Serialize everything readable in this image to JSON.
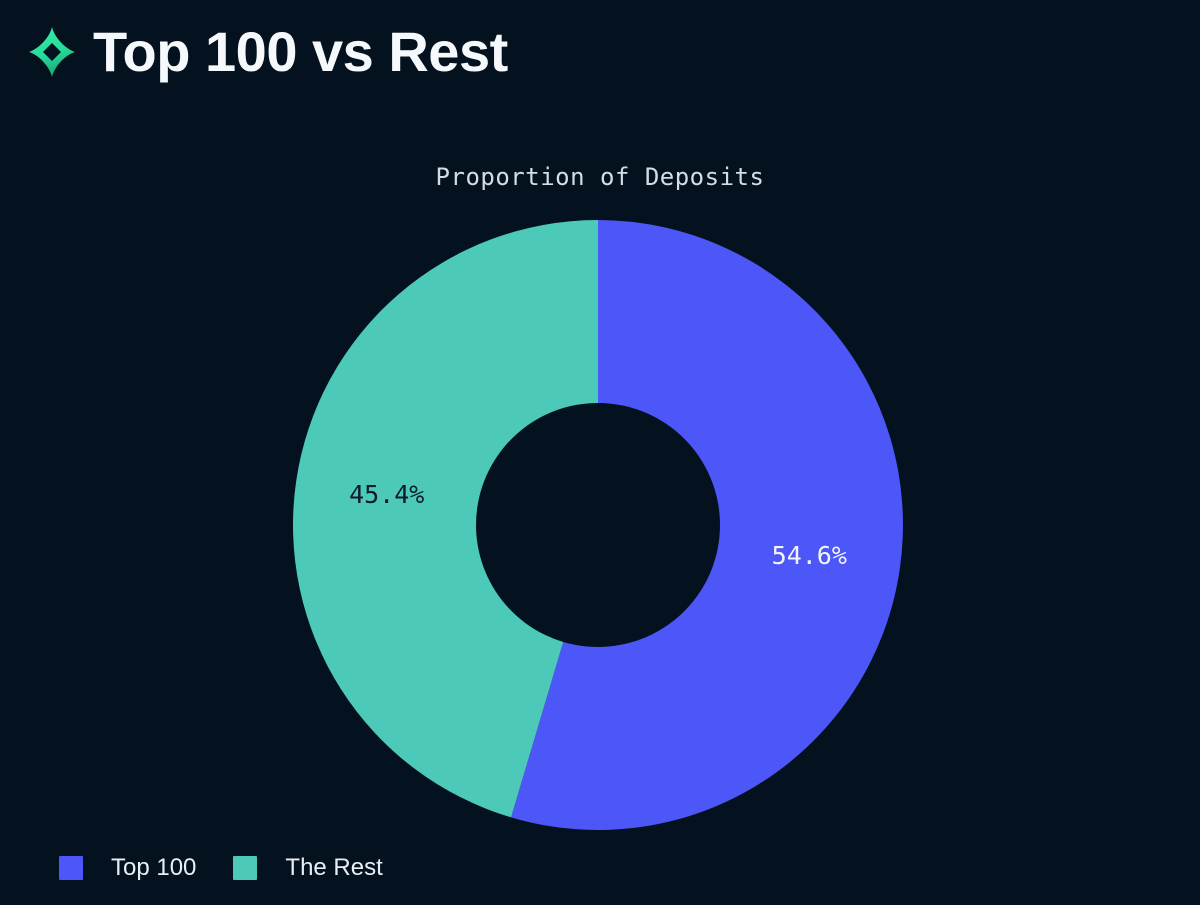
{
  "header": {
    "title": "Top 100 vs Rest",
    "logo": "sparkle-logo-icon"
  },
  "colors": {
    "background": "#03121e",
    "top100_blue": "#4d56f6",
    "rest_teal": "#4dc9ba",
    "header_text": "#f6f9fc",
    "chart_title_text": "#d4dde7",
    "label_on_blue": "#f1f5fa",
    "label_on_teal": "#0e1c2a",
    "legend_text": "#e9eef5",
    "logo_green_light": "#31eba6",
    "logo_green_dark": "#17a173"
  },
  "chart_data": {
    "type": "pie",
    "title": "Proportion of Deposits",
    "hole": 0.4,
    "start_angle_deg": 0,
    "direction": "clockwise",
    "legend_position": "bottom-left",
    "slices": [
      {
        "label": "Top 100",
        "value": 54.6,
        "display": "54.6%",
        "color": "#4d56f6",
        "text_color": "#f1f5fa"
      },
      {
        "label": "The Rest",
        "value": 45.4,
        "display": "45.4%",
        "color": "#4dc9ba",
        "text_color": "#0e1c2a"
      }
    ]
  }
}
